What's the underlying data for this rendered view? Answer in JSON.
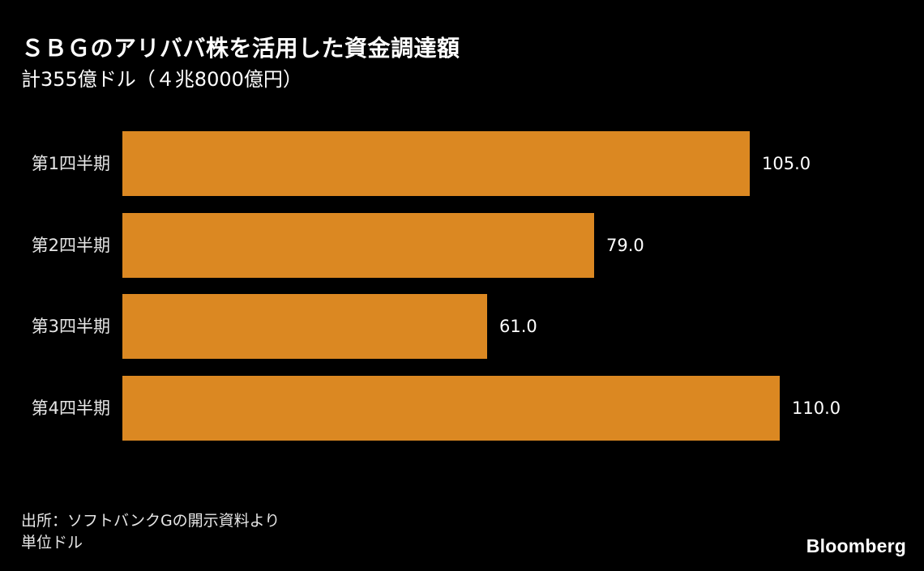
{
  "header": {
    "title": "ＳＢＧのアリババ株を活用した資金調達額",
    "subtitle": "計355億ドル（４兆8000億円）"
  },
  "footer": {
    "source": "出所：ソフトバンクGの開示資料より",
    "unit": "単位ドル",
    "logo": "Bloomberg"
  },
  "colors": {
    "bar": "#DB8822",
    "background": "#000000",
    "text": "#FFFFFF"
  },
  "chart_data": {
    "type": "bar",
    "orientation": "horizontal",
    "title": "ＳＢＧのアリババ株を活用した資金調達額",
    "subtitle": "計355億ドル（４兆8000億円）",
    "categories": [
      "第1四半期",
      "第2四半期",
      "第3四半期",
      "第4四半期"
    ],
    "values": [
      105.0,
      79.0,
      61.0,
      110.0
    ],
    "value_labels": [
      "105.0",
      "79.0",
      "61.0",
      "110.0"
    ],
    "xlabel": "",
    "ylabel": "",
    "unit": "億ドル",
    "grid": false,
    "legend": null,
    "notes": [
      "出所：ソフトバンクGの開示資料より",
      "単位ドル"
    ]
  }
}
